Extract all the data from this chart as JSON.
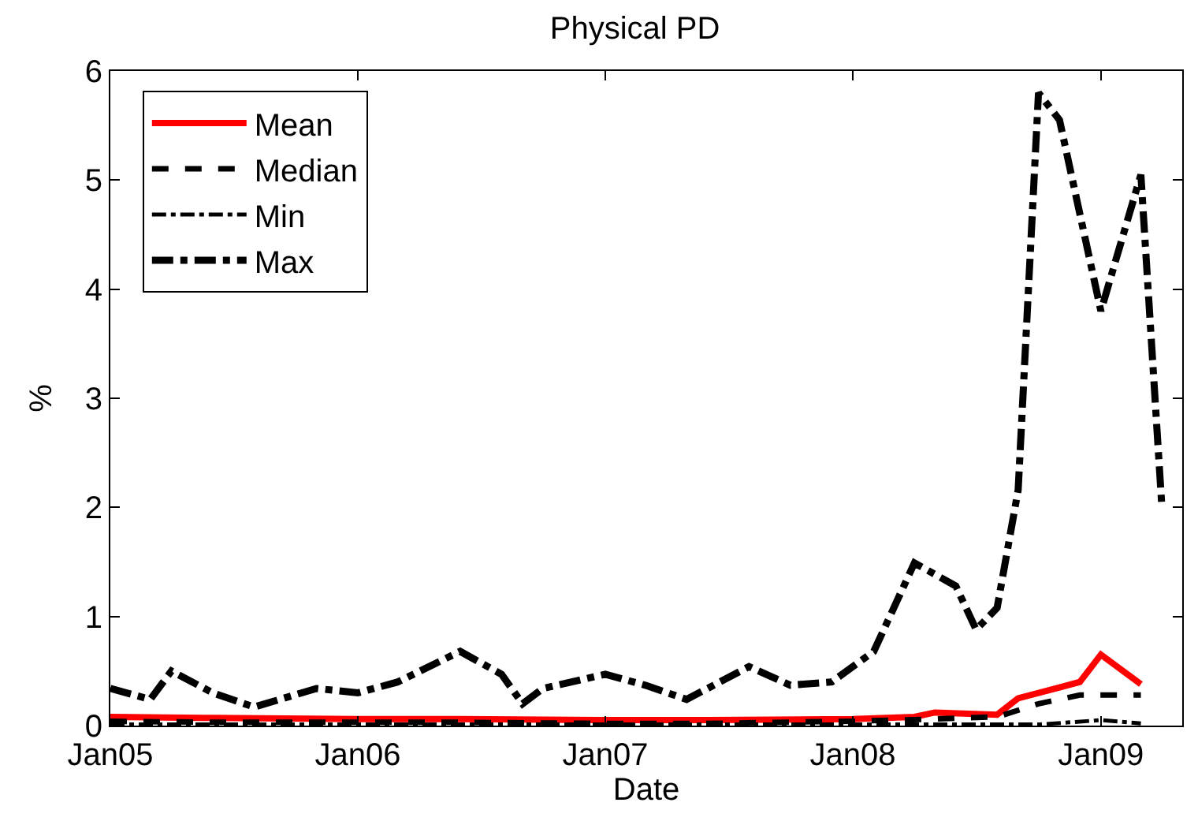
{
  "chart_data": {
    "type": "line",
    "title": "Physical PD",
    "xlabel": "Date",
    "ylabel": "%",
    "xlim": [
      "2005-01",
      "2009-05"
    ],
    "ylim": [
      0,
      6
    ],
    "yticks": [
      0,
      1,
      2,
      3,
      4,
      5,
      6
    ],
    "xticks": [
      {
        "value": "2005-01",
        "label": "Jan05"
      },
      {
        "value": "2006-01",
        "label": "Jan06"
      },
      {
        "value": "2007-01",
        "label": "Jan07"
      },
      {
        "value": "2008-01",
        "label": "Jan08"
      },
      {
        "value": "2009-01",
        "label": "Jan09"
      }
    ],
    "legend": "top left",
    "marker": "none",
    "series": [
      {
        "name": "Mean",
        "color": "#ff0000",
        "line_style": "solid",
        "x": [
          "2005-01",
          "2005-06",
          "2006-01",
          "2006-06",
          "2007-01",
          "2007-06",
          "2008-01",
          "2008-04",
          "2008-05",
          "2008-08",
          "2008-09",
          "2008-11",
          "2008-12",
          "2009-01",
          "2009-03"
        ],
        "values": [
          0.08,
          0.07,
          0.06,
          0.06,
          0.05,
          0.05,
          0.06,
          0.08,
          0.12,
          0.1,
          0.25,
          0.35,
          0.4,
          0.65,
          0.38
        ]
      },
      {
        "name": "Median",
        "color": "#000000",
        "line_style": "dashed",
        "x": [
          "2005-01",
          "2005-06",
          "2006-01",
          "2006-06",
          "2007-01",
          "2007-06",
          "2008-01",
          "2008-05",
          "2008-08",
          "2008-10",
          "2008-12",
          "2009-03"
        ],
        "values": [
          0.04,
          0.03,
          0.03,
          0.03,
          0.02,
          0.02,
          0.04,
          0.06,
          0.08,
          0.2,
          0.28,
          0.28
        ]
      },
      {
        "name": "Min",
        "color": "#000000",
        "line_style": "dashdot",
        "x": [
          "2005-01",
          "2006-01",
          "2007-01",
          "2008-01",
          "2008-10",
          "2009-01",
          "2009-03"
        ],
        "values": [
          0.01,
          0.01,
          0.01,
          0.01,
          0.01,
          0.05,
          0.02
        ]
      },
      {
        "name": "Max",
        "color": "#000000",
        "line_style": "dashdot",
        "x": [
          "2005-01",
          "2005-03",
          "2005-04",
          "2005-06",
          "2005-08",
          "2005-11",
          "2006-01",
          "2006-03",
          "2006-06",
          "2006-08",
          "2006-09",
          "2006-10",
          "2007-01",
          "2007-03",
          "2007-05",
          "2007-08",
          "2007-10",
          "2007-12",
          "2008-02",
          "2008-04",
          "2008-06",
          "2008-07",
          "2008-08",
          "2008-09",
          "2008-10",
          "2008-11",
          "2009-01",
          "2009-03",
          "2009-04"
        ],
        "values": [
          0.34,
          0.24,
          0.5,
          0.3,
          0.17,
          0.34,
          0.3,
          0.4,
          0.68,
          0.47,
          0.2,
          0.34,
          0.47,
          0.37,
          0.24,
          0.54,
          0.37,
          0.4,
          0.68,
          1.49,
          1.28,
          0.88,
          1.08,
          2.16,
          5.8,
          5.55,
          3.8,
          5.05,
          2.0
        ]
      }
    ]
  }
}
